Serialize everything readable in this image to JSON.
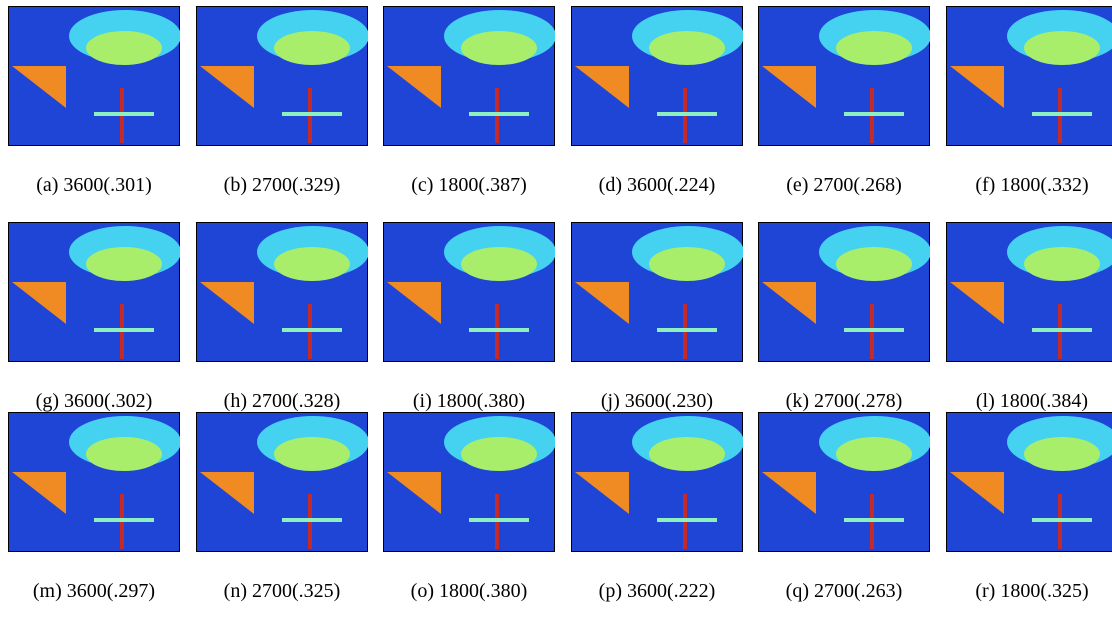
{
  "captions": [
    "(a) 3600(.301)",
    "(b) 2700(.329)",
    "(c) 1800(.387)",
    "(d) 3600(.224)",
    "(e) 2700(.268)",
    "(f) 1800(.332)",
    "(g) 3600(.302)",
    "(h) 2700(.328)",
    "(i) 1800(.380)",
    "(j) 3600(.230)",
    "(k) 2700(.278)",
    "(l) 1800(.384)",
    "(m) 3600(.297)",
    "(n) 2700(.325)",
    "(o) 1800(.380)",
    "(p) 3600(.222)",
    "(q) 2700(.263)",
    "(r) 1800(.325)"
  ]
}
